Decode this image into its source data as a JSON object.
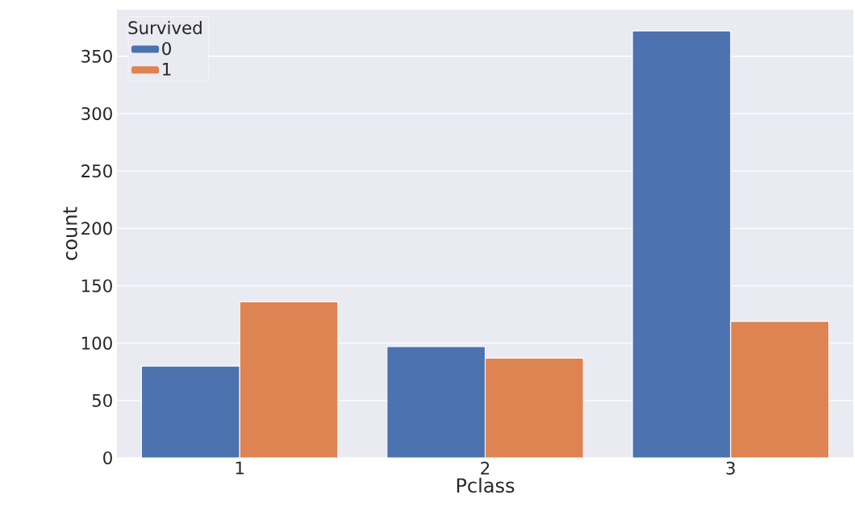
{
  "chart_data": {
    "type": "bar",
    "xlabel": "Pclass",
    "ylabel": "count",
    "legend_title": "Survived",
    "categories": [
      "1",
      "2",
      "3"
    ],
    "series": [
      {
        "name": "0",
        "color": "#4c72b0",
        "values": [
          80,
          97,
          372
        ]
      },
      {
        "name": "1",
        "color": "#dd8452",
        "values": [
          136,
          87,
          119
        ]
      }
    ],
    "ylim": [
      0,
      390.6
    ],
    "yticks": [
      0,
      50,
      100,
      150,
      200,
      250,
      300,
      350
    ],
    "grid": "y",
    "legend": "top left"
  }
}
